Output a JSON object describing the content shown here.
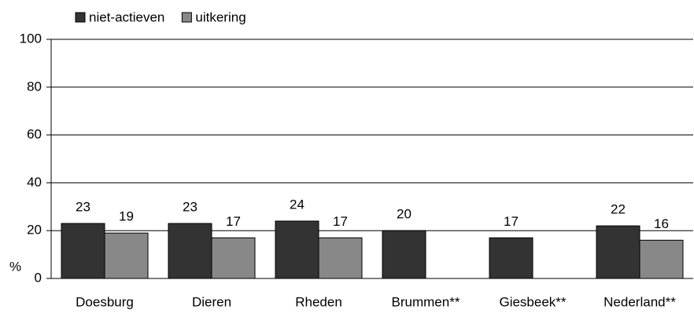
{
  "chart_data": {
    "type": "bar",
    "categories": [
      "Doesburg",
      "Dieren",
      "Rheden",
      "Brummen**",
      "Giesbeek**",
      "Nederland**"
    ],
    "series": [
      {
        "name": "niet-actieven",
        "color": "#333333",
        "values": [
          23,
          23,
          24,
          20,
          17,
          22
        ]
      },
      {
        "name": "uitkering",
        "color": "#888888",
        "values": [
          19,
          17,
          17,
          null,
          null,
          16
        ]
      }
    ],
    "y_label": "%",
    "ylim": [
      0,
      100
    ],
    "yticks": [
      0,
      20,
      40,
      60,
      80,
      100
    ],
    "grid": true,
    "legend": "top-left"
  }
}
